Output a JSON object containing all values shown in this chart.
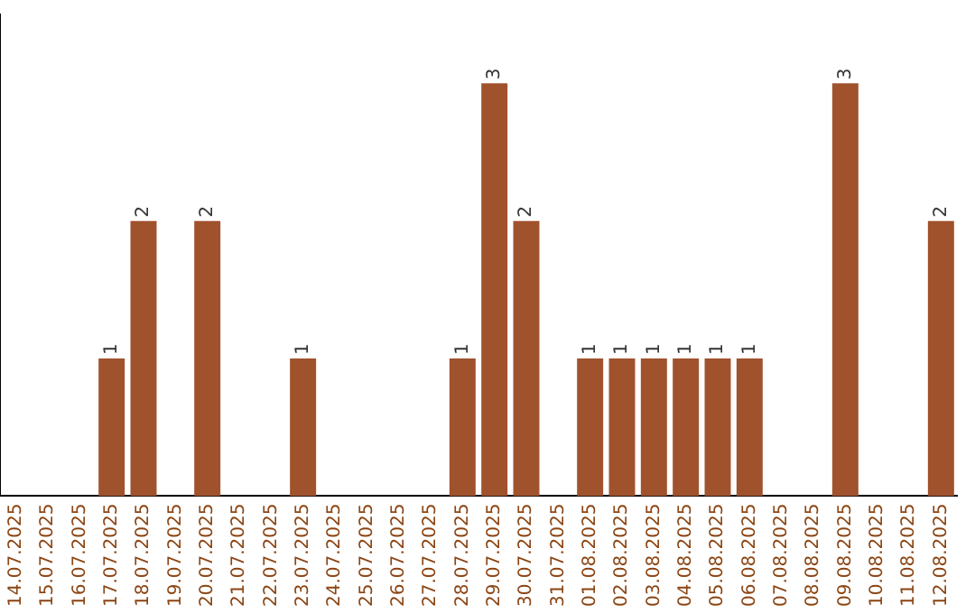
{
  "chart_data": {
    "type": "bar",
    "categories": [
      "14.07.2025",
      "15.07.2025",
      "16.07.2025",
      "17.07.2025",
      "18.07.2025",
      "19.07.2025",
      "20.07.2025",
      "21.07.2025",
      "22.07.2025",
      "23.07.2025",
      "24.07.2025",
      "25.07.2025",
      "26.07.2025",
      "27.07.2025",
      "28.07.2025",
      "29.07.2025",
      "30.07.2025",
      "31.07.2025",
      "01.08.2025",
      "02.08.2025",
      "03.08.2025",
      "04.08.2025",
      "05.08.2025",
      "06.08.2025",
      "07.08.2025",
      "08.08.2025",
      "09.08.2025",
      "10.08.2025",
      "11.08.2025",
      "12.08.2025"
    ],
    "values": [
      0,
      0,
      0,
      1,
      2,
      0,
      2,
      0,
      0,
      1,
      0,
      0,
      0,
      0,
      1,
      3,
      2,
      0,
      1,
      1,
      1,
      1,
      1,
      1,
      0,
      0,
      3,
      0,
      0,
      2
    ],
    "value_labels": [
      null,
      null,
      null,
      "1",
      "2",
      null,
      "2",
      null,
      null,
      "1",
      null,
      null,
      null,
      null,
      "1",
      "3",
      "2",
      null,
      "1",
      "1",
      "1",
      "1",
      "1",
      "1",
      null,
      null,
      "3",
      null,
      null,
      "2"
    ],
    "color": "#a0522d",
    "grid": false,
    "legend": false,
    "tick_labels": "x"
  }
}
